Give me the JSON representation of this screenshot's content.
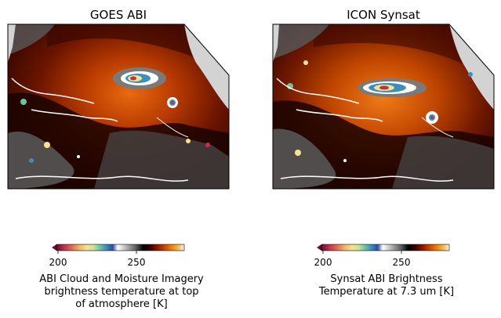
{
  "figure": {
    "panels": [
      {
        "title": "GOES ABI"
      },
      {
        "title": "ICON Synsat"
      }
    ]
  },
  "chart_data": [
    {
      "type": "heatmap",
      "title": "GOES ABI",
      "colorbar": {
        "label_lines": [
          "ABI Cloud and Moisture Imagery",
          "brightness temperature at top",
          "of atmosphere [K]"
        ],
        "ticks": [
          200,
          250
        ],
        "range": [
          185,
          280
        ],
        "extend": "min",
        "colormap": [
          "#6b0a2e",
          "#c0304a",
          "#e06a52",
          "#f2b36a",
          "#f6e38c",
          "#c9e39a",
          "#6cc4a0",
          "#3a8fbf",
          "#2b4fa0",
          "#ffffff",
          "#b0b0b0",
          "#606060",
          "#000000",
          "#3a0000",
          "#8a1a00",
          "#d04a00",
          "#f08a10",
          "#f8c060",
          "#fff5e0"
        ]
      },
      "features": [
        "land-gray",
        "coastlines-white",
        "hurricane-eye"
      ]
    },
    {
      "type": "heatmap",
      "title": "ICON Synsat",
      "colorbar": {
        "label_lines": [
          "Synsat ABI Brightness",
          "Temperature at 7.3 um [K]"
        ],
        "ticks": [
          200,
          250
        ],
        "range": [
          185,
          280
        ],
        "extend": "min",
        "colormap": [
          "#6b0a2e",
          "#c0304a",
          "#e06a52",
          "#f2b36a",
          "#f6e38c",
          "#c9e39a",
          "#6cc4a0",
          "#3a8fbf",
          "#2b4fa0",
          "#ffffff",
          "#b0b0b0",
          "#606060",
          "#000000",
          "#3a0000",
          "#8a1a00",
          "#d04a00",
          "#f08a10",
          "#f8c060",
          "#fff5e0"
        ]
      },
      "features": [
        "land-gray",
        "coastlines-white",
        "hurricane-eye"
      ]
    }
  ]
}
